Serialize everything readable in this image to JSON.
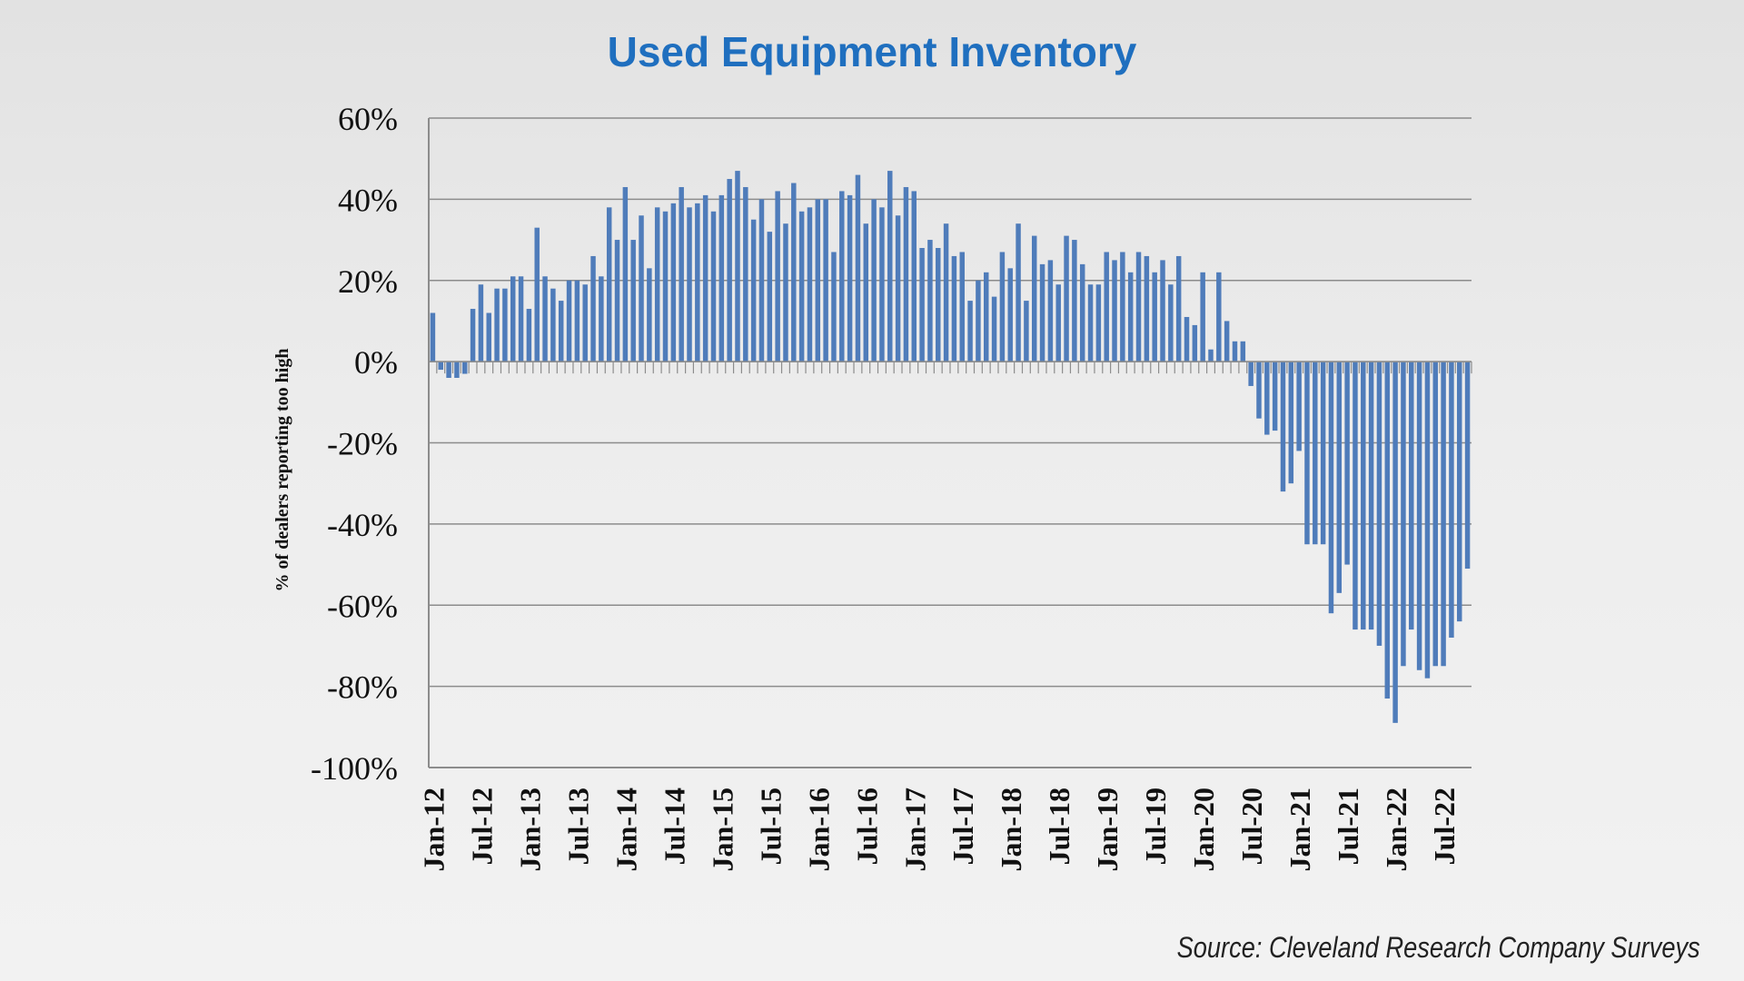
{
  "chart_data": {
    "type": "bar",
    "title": "Used Equipment Inventory",
    "ylabel": "% of dealers reporting too high",
    "xlabel": "",
    "ylim": [
      -100,
      60
    ],
    "yticks": [
      60,
      40,
      20,
      0,
      -20,
      -40,
      -60,
      -80,
      -100
    ],
    "ytick_labels": [
      "60%",
      "40%",
      "20%",
      "0%",
      "-20%",
      "-40%",
      "-60%",
      "-80%",
      "-100%"
    ],
    "xtick_labels": [
      "Jan-12",
      "Jul-12",
      "Jan-13",
      "Jul-13",
      "Jan-14",
      "Jul-14",
      "Jan-15",
      "Jul-15",
      "Jan-16",
      "Jul-16",
      "Jan-17",
      "Jul-17",
      "Jan-18",
      "Jul-18",
      "Jan-19",
      "Jul-19",
      "Jan-20",
      "Jul-20",
      "Jan-21",
      "Jul-21",
      "Jan-22",
      "Jul-22"
    ],
    "x_start": "Jan-12",
    "x_end": "Nov-22",
    "values": [
      12,
      -2,
      -4,
      -4,
      -3,
      13,
      19,
      12,
      18,
      18,
      21,
      21,
      13,
      33,
      21,
      18,
      15,
      20,
      20,
      19,
      26,
      21,
      38,
      30,
      43,
      30,
      36,
      23,
      38,
      37,
      39,
      43,
      38,
      39,
      41,
      37,
      41,
      45,
      47,
      43,
      35,
      40,
      32,
      42,
      34,
      44,
      37,
      38,
      40,
      40,
      27,
      42,
      41,
      46,
      34,
      40,
      38,
      47,
      36,
      43,
      42,
      28,
      30,
      28,
      34,
      26,
      27,
      15,
      20,
      22,
      16,
      27,
      23,
      34,
      15,
      31,
      24,
      25,
      19,
      31,
      30,
      24,
      19,
      19,
      27,
      25,
      27,
      22,
      27,
      26,
      22,
      25,
      19,
      26,
      11,
      9,
      22,
      3,
      22,
      10,
      5,
      5,
      -6,
      -14,
      -18,
      -17,
      -32,
      -30,
      -22,
      -45,
      -45,
      -45,
      -62,
      -57,
      -50,
      -66,
      -66,
      -66,
      -70,
      -83,
      -89,
      -75,
      -66,
      -76,
      -78,
      -75,
      -75,
      -68,
      -64,
      -51
    ],
    "series_color": "#4f7cba",
    "grid": true,
    "legend": "none",
    "source_note": "Source: Cleveland Research Company Surveys"
  }
}
